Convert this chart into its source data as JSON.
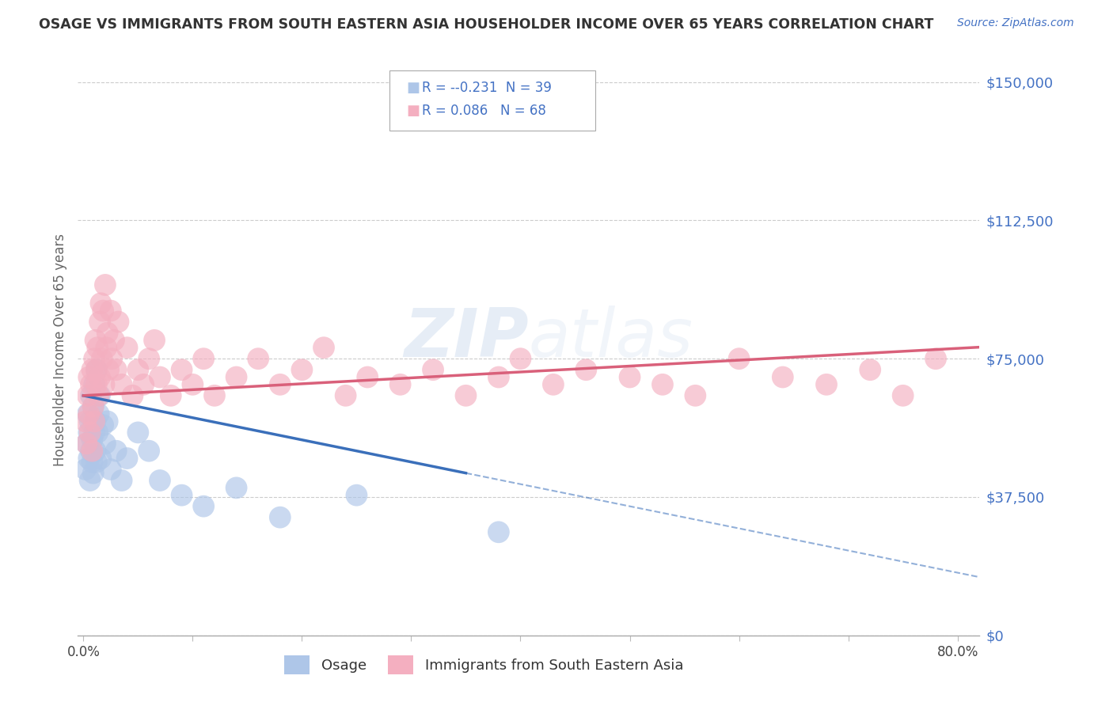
{
  "title": "OSAGE VS IMMIGRANTS FROM SOUTH EASTERN ASIA HOUSEHOLDER INCOME OVER 65 YEARS CORRELATION CHART",
  "source": "Source: ZipAtlas.com",
  "ylabel": "Householder Income Over 65 years",
  "xlim": [
    -0.005,
    0.82
  ],
  "ylim": [
    0,
    155000
  ],
  "yticks": [
    0,
    37500,
    75000,
    112500,
    150000
  ],
  "ytick_labels": [
    "$0",
    "$37,500",
    "$75,000",
    "$112,500",
    "$150,000"
  ],
  "xticks": [
    0.0,
    0.1,
    0.2,
    0.3,
    0.4,
    0.5,
    0.6,
    0.7,
    0.8
  ],
  "xtick_labels": [
    "0.0%",
    "",
    "",
    "",
    "",
    "",
    "",
    "",
    "80.0%"
  ],
  "legend1_r": "-0.231",
  "legend1_n": "39",
  "legend2_r": "0.086",
  "legend2_n": "68",
  "osage_label": "Osage",
  "sea_label": "Immigrants from South Eastern Asia",
  "watermark_zip": "ZIP",
  "watermark_atlas": "atlas",
  "title_color": "#333333",
  "source_color": "#4472c4",
  "axis_label_color": "#666666",
  "ytick_color": "#4472c4",
  "osage_color": "#aec6e8",
  "osage_line_color": "#3a6fba",
  "sea_color": "#f4afc0",
  "sea_line_color": "#d9607a",
  "legend_color": "#4472c4",
  "osage_x": [
    0.002,
    0.003,
    0.004,
    0.005,
    0.005,
    0.006,
    0.006,
    0.007,
    0.007,
    0.008,
    0.008,
    0.009,
    0.009,
    0.01,
    0.01,
    0.011,
    0.011,
    0.012,
    0.012,
    0.013,
    0.014,
    0.015,
    0.016,
    0.018,
    0.02,
    0.022,
    0.025,
    0.03,
    0.035,
    0.04,
    0.05,
    0.06,
    0.07,
    0.09,
    0.11,
    0.14,
    0.18,
    0.25,
    0.38
  ],
  "osage_y": [
    45000,
    52000,
    60000,
    48000,
    55000,
    42000,
    58000,
    50000,
    65000,
    47000,
    53000,
    62000,
    44000,
    68000,
    55000,
    50000,
    58000,
    47000,
    72000,
    55000,
    60000,
    65000,
    48000,
    57000,
    52000,
    58000,
    45000,
    50000,
    42000,
    48000,
    55000,
    50000,
    42000,
    38000,
    35000,
    40000,
    32000,
    38000,
    28000
  ],
  "sea_x": [
    0.002,
    0.003,
    0.004,
    0.005,
    0.005,
    0.006,
    0.007,
    0.008,
    0.008,
    0.009,
    0.01,
    0.01,
    0.011,
    0.012,
    0.012,
    0.013,
    0.014,
    0.015,
    0.015,
    0.016,
    0.017,
    0.018,
    0.019,
    0.02,
    0.021,
    0.022,
    0.023,
    0.025,
    0.026,
    0.028,
    0.03,
    0.032,
    0.035,
    0.04,
    0.045,
    0.05,
    0.055,
    0.06,
    0.065,
    0.07,
    0.08,
    0.09,
    0.1,
    0.11,
    0.12,
    0.14,
    0.16,
    0.18,
    0.2,
    0.22,
    0.24,
    0.26,
    0.29,
    0.32,
    0.35,
    0.38,
    0.4,
    0.43,
    0.46,
    0.5,
    0.53,
    0.56,
    0.6,
    0.64,
    0.68,
    0.72,
    0.75,
    0.78
  ],
  "sea_y": [
    58000,
    52000,
    65000,
    70000,
    60000,
    55000,
    68000,
    72000,
    50000,
    62000,
    75000,
    58000,
    80000,
    68000,
    72000,
    78000,
    65000,
    85000,
    70000,
    90000,
    75000,
    88000,
    68000,
    95000,
    78000,
    82000,
    72000,
    88000,
    75000,
    80000,
    72000,
    85000,
    68000,
    78000,
    65000,
    72000,
    68000,
    75000,
    80000,
    70000,
    65000,
    72000,
    68000,
    75000,
    65000,
    70000,
    75000,
    68000,
    72000,
    78000,
    65000,
    70000,
    68000,
    72000,
    65000,
    70000,
    75000,
    68000,
    72000,
    70000,
    68000,
    65000,
    75000,
    70000,
    68000,
    72000,
    65000,
    75000
  ]
}
